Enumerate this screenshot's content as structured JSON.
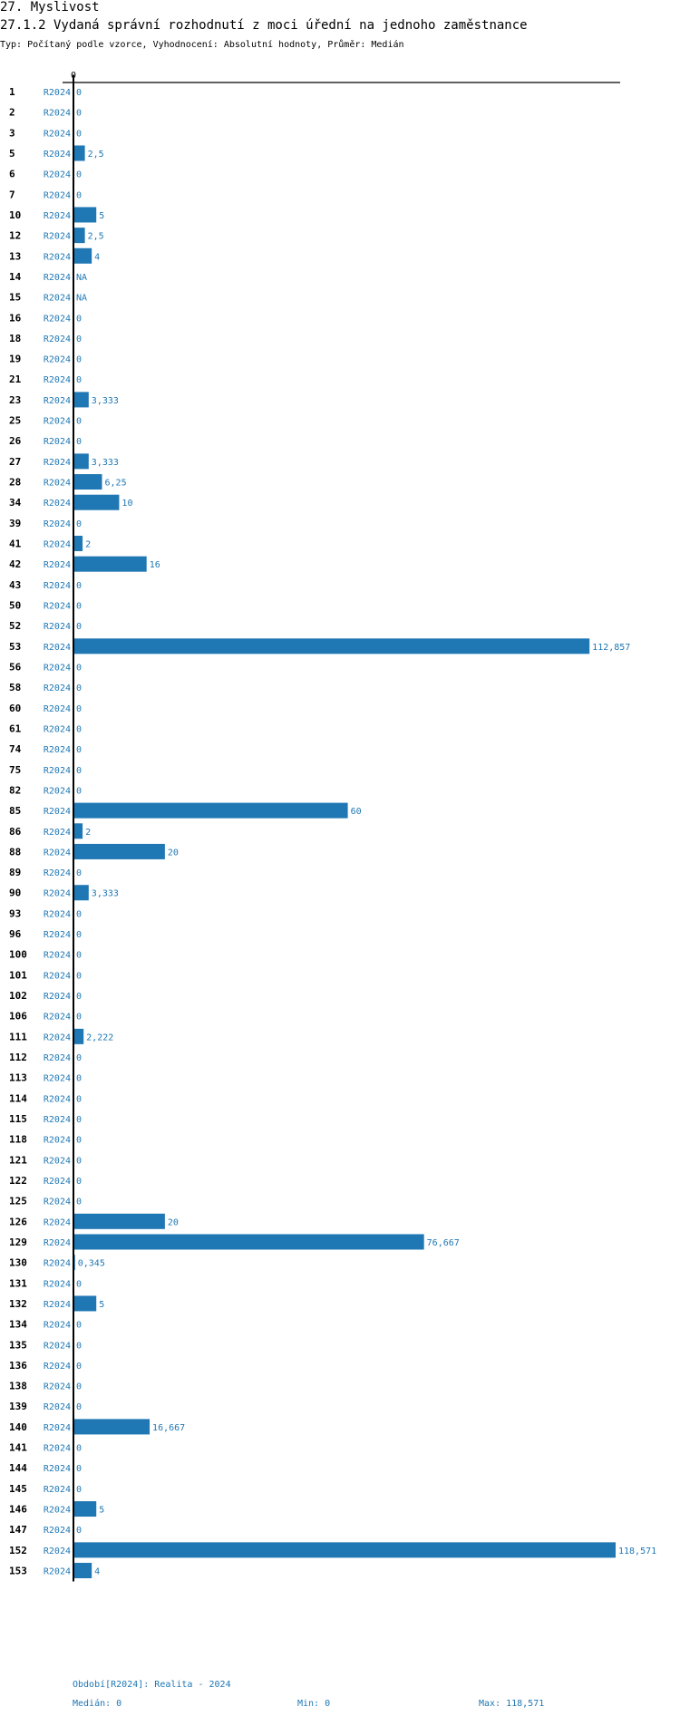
{
  "header": {
    "section": "27. Myslivost",
    "title": "27.1.2 Vydaná správní rozhodnutí z moci úřední na jednoho zaměstnance",
    "subtitle": "Typ: Počítaný podle vzorce, Vyhodnocení: Absolutní hodnoty, Průměr: Medián"
  },
  "chart_data": {
    "type": "bar",
    "orientation": "horizontal",
    "series_label": "R2024",
    "xlim": [
      0,
      118.571
    ],
    "x_tick_labels": [
      "0"
    ],
    "bar_color": "#1f77b4",
    "rows": [
      {
        "id": "1",
        "value": 0,
        "label": "0"
      },
      {
        "id": "2",
        "value": 0,
        "label": "0"
      },
      {
        "id": "3",
        "value": 0,
        "label": "0"
      },
      {
        "id": "5",
        "value": 2.5,
        "label": "2,5"
      },
      {
        "id": "6",
        "value": 0,
        "label": "0"
      },
      {
        "id": "7",
        "value": 0,
        "label": "0"
      },
      {
        "id": "10",
        "value": 5,
        "label": "5"
      },
      {
        "id": "12",
        "value": 2.5,
        "label": "2,5"
      },
      {
        "id": "13",
        "value": 4,
        "label": "4"
      },
      {
        "id": "14",
        "value": null,
        "label": "NA"
      },
      {
        "id": "15",
        "value": null,
        "label": "NA"
      },
      {
        "id": "16",
        "value": 0,
        "label": "0"
      },
      {
        "id": "18",
        "value": 0,
        "label": "0"
      },
      {
        "id": "19",
        "value": 0,
        "label": "0"
      },
      {
        "id": "21",
        "value": 0,
        "label": "0"
      },
      {
        "id": "23",
        "value": 3.333,
        "label": "3,333"
      },
      {
        "id": "25",
        "value": 0,
        "label": "0"
      },
      {
        "id": "26",
        "value": 0,
        "label": "0"
      },
      {
        "id": "27",
        "value": 3.333,
        "label": "3,333"
      },
      {
        "id": "28",
        "value": 6.25,
        "label": "6,25"
      },
      {
        "id": "34",
        "value": 10,
        "label": "10"
      },
      {
        "id": "39",
        "value": 0,
        "label": "0"
      },
      {
        "id": "41",
        "value": 2,
        "label": "2"
      },
      {
        "id": "42",
        "value": 16,
        "label": "16"
      },
      {
        "id": "43",
        "value": 0,
        "label": "0"
      },
      {
        "id": "50",
        "value": 0,
        "label": "0"
      },
      {
        "id": "52",
        "value": 0,
        "label": "0"
      },
      {
        "id": "53",
        "value": 112.857,
        "label": "112,857"
      },
      {
        "id": "56",
        "value": 0,
        "label": "0"
      },
      {
        "id": "58",
        "value": 0,
        "label": "0"
      },
      {
        "id": "60",
        "value": 0,
        "label": "0"
      },
      {
        "id": "61",
        "value": 0,
        "label": "0"
      },
      {
        "id": "74",
        "value": 0,
        "label": "0"
      },
      {
        "id": "75",
        "value": 0,
        "label": "0"
      },
      {
        "id": "82",
        "value": 0,
        "label": "0"
      },
      {
        "id": "85",
        "value": 60,
        "label": "60"
      },
      {
        "id": "86",
        "value": 2,
        "label": "2"
      },
      {
        "id": "88",
        "value": 20,
        "label": "20"
      },
      {
        "id": "89",
        "value": 0,
        "label": "0"
      },
      {
        "id": "90",
        "value": 3.333,
        "label": "3,333"
      },
      {
        "id": "93",
        "value": 0,
        "label": "0"
      },
      {
        "id": "96",
        "value": 0,
        "label": "0"
      },
      {
        "id": "100",
        "value": 0,
        "label": "0"
      },
      {
        "id": "101",
        "value": 0,
        "label": "0"
      },
      {
        "id": "102",
        "value": 0,
        "label": "0"
      },
      {
        "id": "106",
        "value": 0,
        "label": "0"
      },
      {
        "id": "111",
        "value": 2.222,
        "label": "2,222"
      },
      {
        "id": "112",
        "value": 0,
        "label": "0"
      },
      {
        "id": "113",
        "value": 0,
        "label": "0"
      },
      {
        "id": "114",
        "value": 0,
        "label": "0"
      },
      {
        "id": "115",
        "value": 0,
        "label": "0"
      },
      {
        "id": "118",
        "value": 0,
        "label": "0"
      },
      {
        "id": "121",
        "value": 0,
        "label": "0"
      },
      {
        "id": "122",
        "value": 0,
        "label": "0"
      },
      {
        "id": "125",
        "value": 0,
        "label": "0"
      },
      {
        "id": "126",
        "value": 20,
        "label": "20"
      },
      {
        "id": "129",
        "value": 76.667,
        "label": "76,667"
      },
      {
        "id": "130",
        "value": 0.345,
        "label": "0,345"
      },
      {
        "id": "131",
        "value": 0,
        "label": "0"
      },
      {
        "id": "132",
        "value": 5,
        "label": "5"
      },
      {
        "id": "134",
        "value": 0,
        "label": "0"
      },
      {
        "id": "135",
        "value": 0,
        "label": "0"
      },
      {
        "id": "136",
        "value": 0,
        "label": "0"
      },
      {
        "id": "138",
        "value": 0,
        "label": "0"
      },
      {
        "id": "139",
        "value": 0,
        "label": "0"
      },
      {
        "id": "140",
        "value": 16.667,
        "label": "16,667"
      },
      {
        "id": "141",
        "value": 0,
        "label": "0"
      },
      {
        "id": "144",
        "value": 0,
        "label": "0"
      },
      {
        "id": "145",
        "value": 0,
        "label": "0"
      },
      {
        "id": "146",
        "value": 5,
        "label": "5"
      },
      {
        "id": "147",
        "value": 0,
        "label": "0"
      },
      {
        "id": "152",
        "value": 118.571,
        "label": "118,571"
      },
      {
        "id": "153",
        "value": 4,
        "label": "4"
      }
    ]
  },
  "footer": {
    "period": "Období[R2024]: Realita - 2024",
    "median": "Medián: 0",
    "min": "Min: 0",
    "max": "Max: 118,571"
  }
}
